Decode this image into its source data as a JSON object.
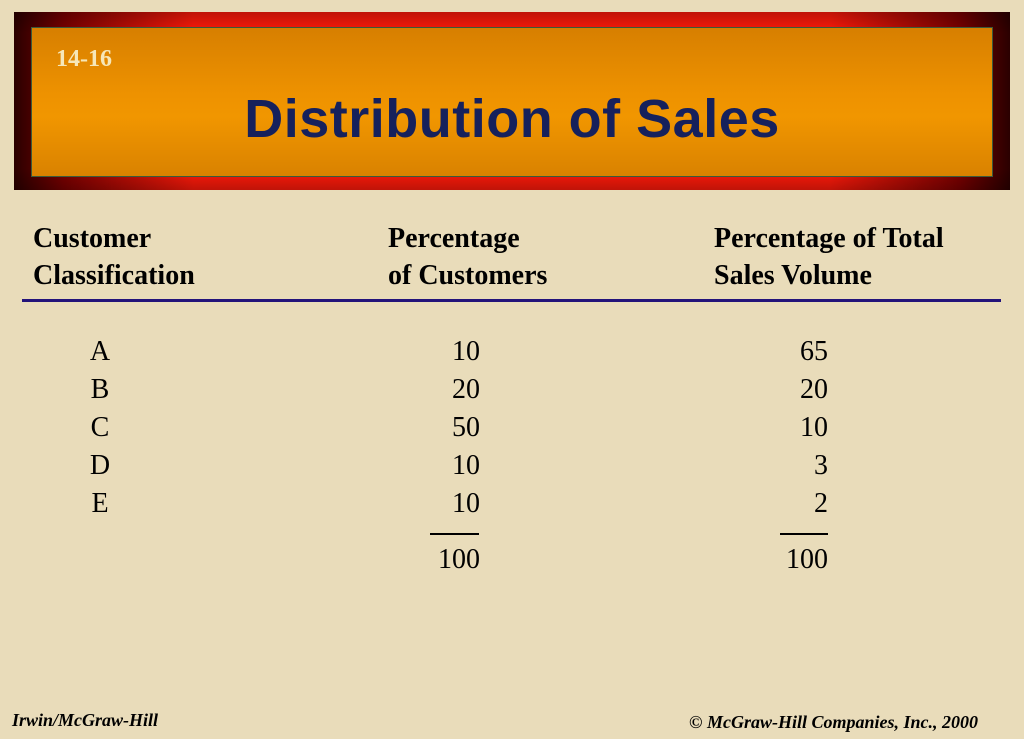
{
  "header": {
    "slide_number": "14-16",
    "title": "Distribution of Sales"
  },
  "table": {
    "columns": [
      {
        "line1": "Customer",
        "line2": "Classification"
      },
      {
        "line1": "Percentage",
        "line2": "of Customers"
      },
      {
        "line1": "Percentage of Total",
        "line2": "Sales Volume"
      }
    ],
    "rows": [
      {
        "classification": "A",
        "pct_customers": "10",
        "pct_sales": "65"
      },
      {
        "classification": "B",
        "pct_customers": "20",
        "pct_sales": "20"
      },
      {
        "classification": "C",
        "pct_customers": "50",
        "pct_sales": "10"
      },
      {
        "classification": "D",
        "pct_customers": "10",
        "pct_sales": "3"
      },
      {
        "classification": "E",
        "pct_customers": "10",
        "pct_sales": "2"
      }
    ],
    "totals": {
      "pct_customers": "100",
      "pct_sales": "100"
    }
  },
  "footer": {
    "left": "Irwin/McGraw-Hill",
    "right": "© McGraw-Hill Companies, Inc., 2000"
  },
  "colors": {
    "background": "#e9dcba",
    "banner_frame": "#ff1a0a",
    "banner_fill": "#ee9200",
    "title_text": "#16215c",
    "rule": "#23137a"
  }
}
